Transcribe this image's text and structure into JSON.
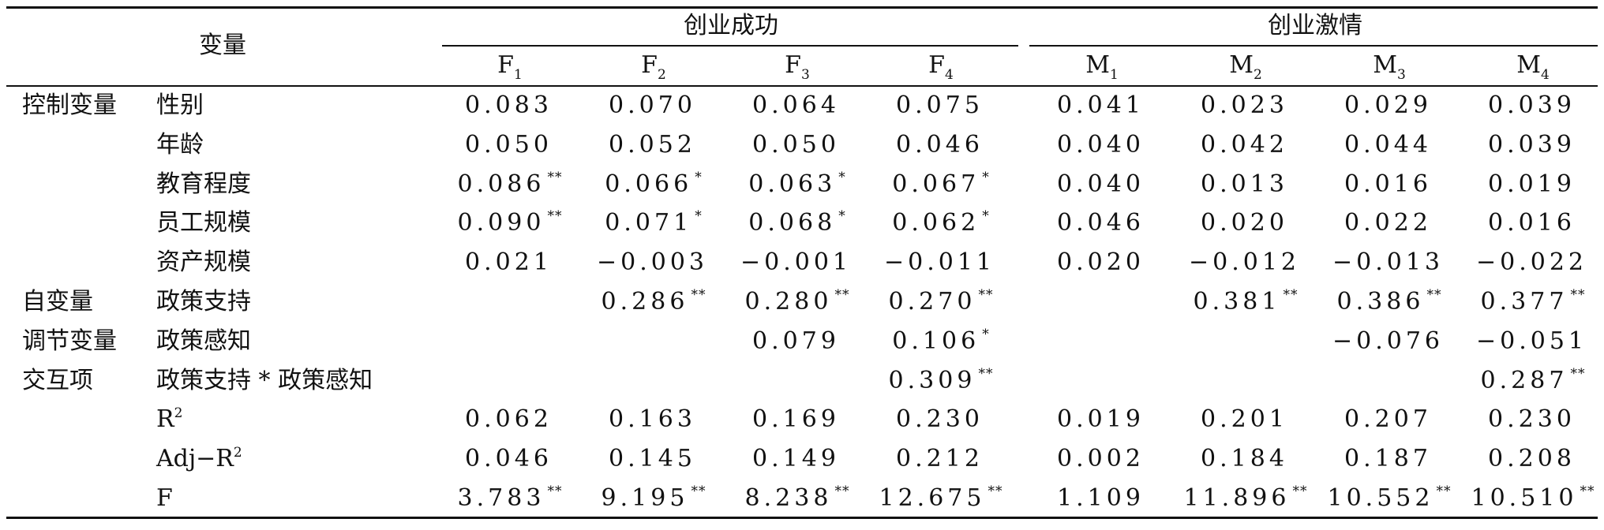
{
  "table": {
    "header": {
      "variable": "变量",
      "groups": [
        {
          "label": "创业成功",
          "cols": [
            "F",
            "F",
            "F",
            "F"
          ],
          "subs": [
            "1",
            "2",
            "3",
            "4"
          ]
        },
        {
          "label": "创业激情",
          "cols": [
            "M",
            "M",
            "M",
            "M"
          ],
          "subs": [
            "1",
            "2",
            "3",
            "4"
          ]
        }
      ]
    },
    "rows": [
      {
        "cat": "控制变量",
        "var": "性别",
        "cells": [
          [
            "0.083",
            ""
          ],
          [
            "0.070",
            ""
          ],
          [
            "0.064",
            ""
          ],
          [
            "0.075",
            ""
          ],
          [
            "0.041",
            ""
          ],
          [
            "0.023",
            ""
          ],
          [
            "0.029",
            ""
          ],
          [
            "0.039",
            ""
          ]
        ]
      },
      {
        "cat": "",
        "var": "年龄",
        "cells": [
          [
            "0.050",
            ""
          ],
          [
            "0.052",
            ""
          ],
          [
            "0.050",
            ""
          ],
          [
            "0.046",
            ""
          ],
          [
            "0.040",
            ""
          ],
          [
            "0.042",
            ""
          ],
          [
            "0.044",
            ""
          ],
          [
            "0.039",
            ""
          ]
        ]
      },
      {
        "cat": "",
        "var": "教育程度",
        "cells": [
          [
            "0.086",
            "**"
          ],
          [
            "0.066",
            "*"
          ],
          [
            "0.063",
            "*"
          ],
          [
            "0.067",
            "*"
          ],
          [
            "0.040",
            ""
          ],
          [
            "0.013",
            ""
          ],
          [
            "0.016",
            ""
          ],
          [
            "0.019",
            ""
          ]
        ]
      },
      {
        "cat": "",
        "var": "员工规模",
        "cells": [
          [
            "0.090",
            "**"
          ],
          [
            "0.071",
            "*"
          ],
          [
            "0.068",
            "*"
          ],
          [
            "0.062",
            "*"
          ],
          [
            "0.046",
            ""
          ],
          [
            "0.020",
            ""
          ],
          [
            "0.022",
            ""
          ],
          [
            "0.016",
            ""
          ]
        ]
      },
      {
        "cat": "",
        "var": "资产规模",
        "cells": [
          [
            "0.021",
            ""
          ],
          [
            "−0.003",
            ""
          ],
          [
            "−0.001",
            ""
          ],
          [
            "−0.011",
            ""
          ],
          [
            "0.020",
            ""
          ],
          [
            "−0.012",
            ""
          ],
          [
            "−0.013",
            ""
          ],
          [
            "−0.022",
            ""
          ]
        ]
      },
      {
        "cat": "自变量",
        "var": "政策支持",
        "cells": [
          [
            "",
            ""
          ],
          [
            "0.286",
            "**"
          ],
          [
            "0.280",
            "**"
          ],
          [
            "0.270",
            "**"
          ],
          [
            "",
            ""
          ],
          [
            "0.381",
            "**"
          ],
          [
            "0.386",
            "**"
          ],
          [
            "0.377",
            "**"
          ]
        ]
      },
      {
        "cat": "调节变量",
        "var": "政策感知",
        "cells": [
          [
            "",
            ""
          ],
          [
            "",
            ""
          ],
          [
            "0.079",
            ""
          ],
          [
            "0.106",
            "*"
          ],
          [
            "",
            ""
          ],
          [
            "",
            ""
          ],
          [
            "−0.076",
            ""
          ],
          [
            "−0.051",
            ""
          ]
        ]
      },
      {
        "cat": "交互项",
        "var": "政策支持 * 政策感知",
        "cells": [
          [
            "",
            ""
          ],
          [
            "",
            ""
          ],
          [
            "",
            ""
          ],
          [
            "0.309",
            "**"
          ],
          [
            "",
            ""
          ],
          [
            "",
            ""
          ],
          [
            "",
            ""
          ],
          [
            "0.287",
            "**"
          ]
        ]
      },
      {
        "cat": "",
        "var": "R",
        "var_sup": "2",
        "cells": [
          [
            "0.062",
            ""
          ],
          [
            "0.163",
            ""
          ],
          [
            "0.169",
            ""
          ],
          [
            "0.230",
            ""
          ],
          [
            "0.019",
            ""
          ],
          [
            "0.201",
            ""
          ],
          [
            "0.207",
            ""
          ],
          [
            "0.230",
            ""
          ]
        ]
      },
      {
        "cat": "",
        "var": "Adj−R",
        "var_sup": "2",
        "cells": [
          [
            "0.046",
            ""
          ],
          [
            "0.145",
            ""
          ],
          [
            "0.149",
            ""
          ],
          [
            "0.212",
            ""
          ],
          [
            "0.002",
            ""
          ],
          [
            "0.184",
            ""
          ],
          [
            "0.187",
            ""
          ],
          [
            "0.208",
            ""
          ]
        ]
      },
      {
        "cat": "",
        "var": "F",
        "cells": [
          [
            "3.783",
            "**"
          ],
          [
            "9.195",
            "**"
          ],
          [
            "8.238",
            "**"
          ],
          [
            "12.675",
            "**"
          ],
          [
            "1.109",
            ""
          ],
          [
            "11.896",
            "**"
          ],
          [
            "10.552",
            "**"
          ],
          [
            "10.510",
            "**"
          ]
        ]
      }
    ]
  }
}
